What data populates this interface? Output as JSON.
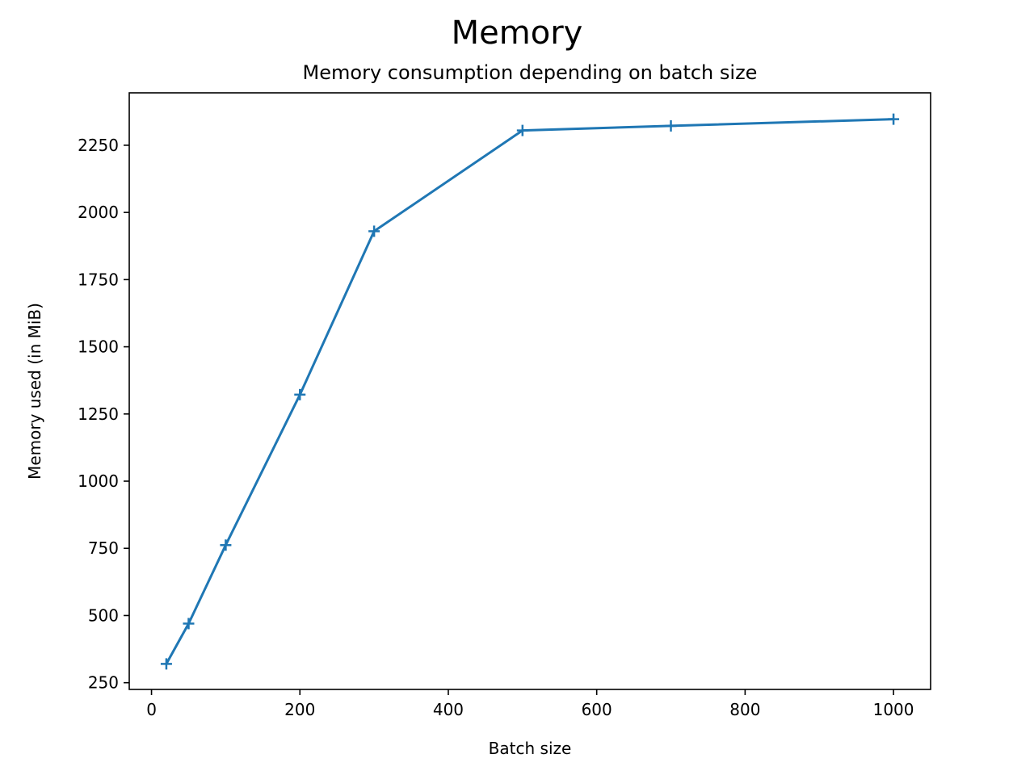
{
  "chart_data": {
    "type": "line",
    "title": "Memory",
    "subtitle": "Memory consumption depending on batch size",
    "xlabel": "Batch size",
    "ylabel": "Memory used (in MiB)",
    "xlim": [
      -30,
      1050
    ],
    "ylim": [
      225,
      2445
    ],
    "xticks": [
      0,
      200,
      400,
      600,
      800,
      1000
    ],
    "yticks": [
      250,
      500,
      750,
      1000,
      1250,
      1500,
      1750,
      2000,
      2250
    ],
    "grid": false,
    "legend": "none",
    "marker": "plus",
    "color": "#1f77b4",
    "series": [
      {
        "x": [
          20,
          50,
          100,
          200,
          300,
          500,
          700,
          1000
        ],
        "y": [
          320,
          470,
          762,
          1322,
          1930,
          2305,
          2322,
          2347
        ]
      }
    ]
  }
}
